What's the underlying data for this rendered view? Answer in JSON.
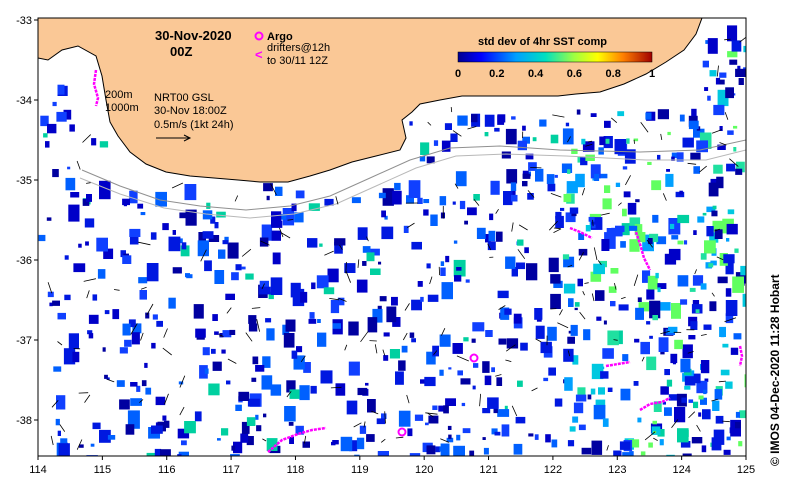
{
  "header": {
    "date": "30-Nov-2020",
    "time": "00Z"
  },
  "legend": {
    "argo_label": "Argo",
    "drifters_line1": "drifters@12h",
    "drifters_line2": "to 30/11 12Z",
    "isobath_200": "200m",
    "isobath_1000": "1000m",
    "current_title": "NRT00 GSL",
    "current_time": "30-Nov 18:00Z",
    "current_scale": "0.5m/s (1kt 24h)"
  },
  "colorbar": {
    "title": "std dev of 4hr SST comp",
    "ticks": [
      "0",
      "0.2",
      "0.4",
      "0.6",
      "0.8",
      "1"
    ]
  },
  "axes": {
    "x_ticks": [
      "114",
      "115",
      "116",
      "117",
      "118",
      "119",
      "120",
      "121",
      "122",
      "123",
      "124",
      "125"
    ],
    "y_ticks": [
      "-33",
      "-34",
      "-35",
      "-36",
      "-37",
      "-38"
    ]
  },
  "credit": "© IMOS 04-Dec-2020 11:28 Hobart",
  "colors": {
    "land": "#fac896",
    "argo": "#ff00ff",
    "drifter": "#ff00ff",
    "ocean_no_data": "#ffffff"
  }
}
